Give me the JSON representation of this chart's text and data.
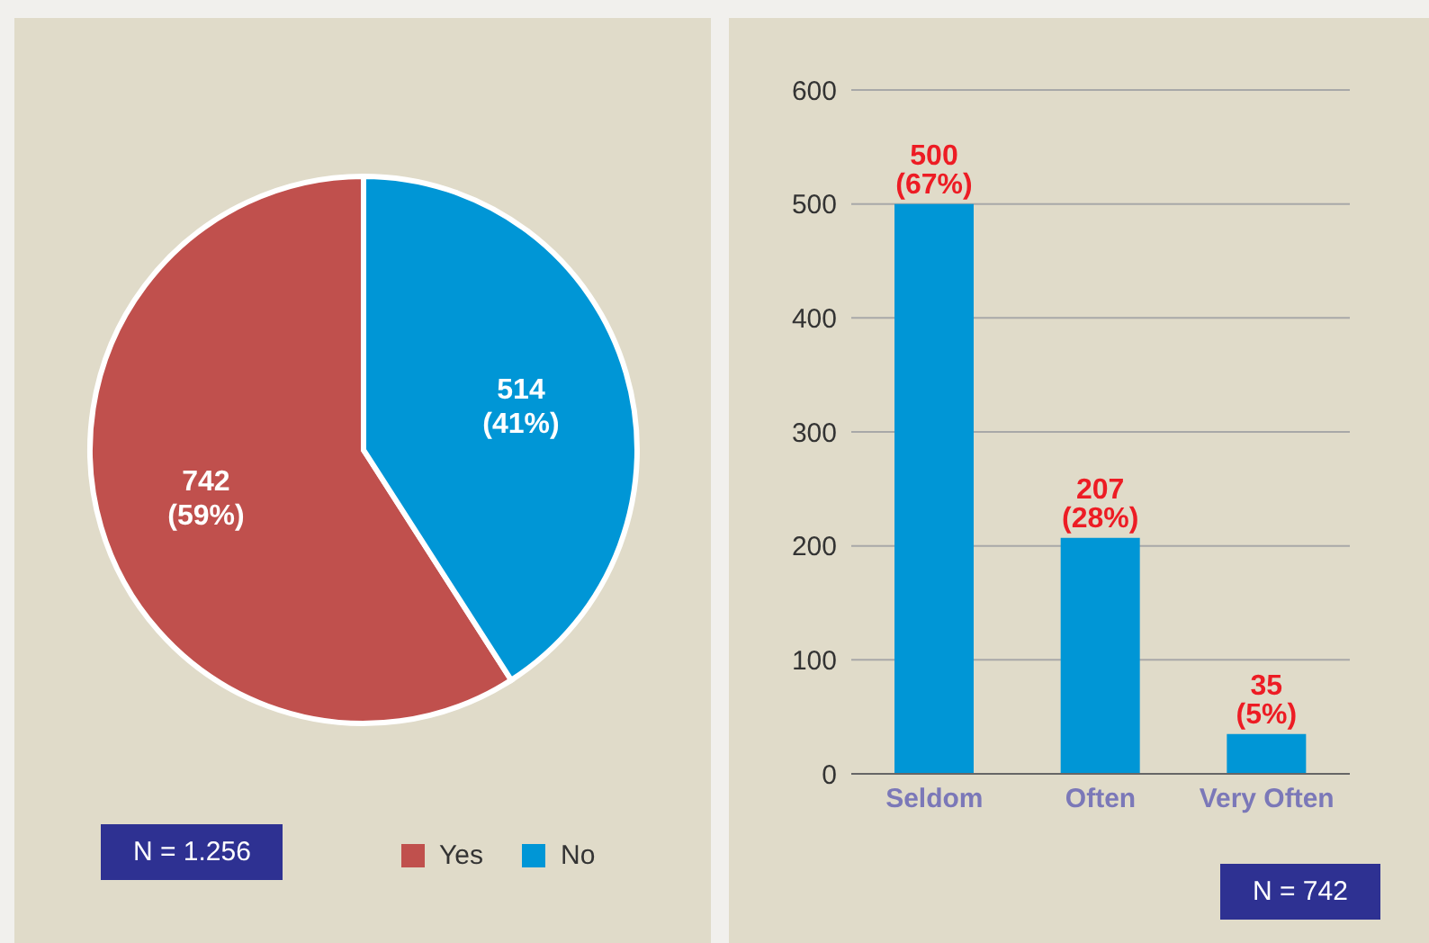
{
  "chart_data": [
    {
      "type": "pie",
      "categories": [
        "Yes",
        "No"
      ],
      "values": [
        742,
        514
      ],
      "colors": [
        "#c0504d",
        "#0096d6"
      ],
      "value_labels": [
        "742 (59%)",
        "514 (41%)"
      ],
      "legend": "bottom right",
      "annotations": [
        "N = 1.256"
      ]
    },
    {
      "type": "bar",
      "categories": [
        "Seldom",
        "Often",
        "Very Often"
      ],
      "values": [
        500,
        207,
        35
      ],
      "color": "#0096d6",
      "value_labels": [
        "500 (67%)",
        "207 (28%)",
        "35 (5%)"
      ],
      "ylim": [
        0,
        600
      ],
      "yticks": [
        0,
        100,
        200,
        300,
        400,
        500,
        600
      ],
      "grid": "y",
      "annotations": [
        "N = 742"
      ]
    }
  ]
}
